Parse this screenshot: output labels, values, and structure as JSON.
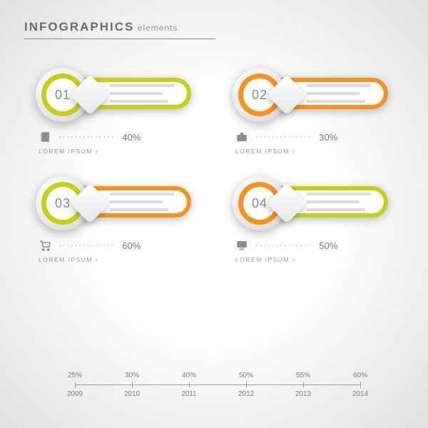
{
  "header": {
    "title_main": "INFOGRAPHICS",
    "title_sub": "elements",
    "rule_color": "#8a8a8a"
  },
  "colors": {
    "lime": "#c3d11a",
    "orange": "#f7921e",
    "ring_grad": "#e8e8e8"
  },
  "items": [
    {
      "num": "01",
      "ring_color": "#c3d11a",
      "bar_color": "#c3d11a",
      "icon": "notebook",
      "pct": "40%",
      "caption": "LOREM IPSUM"
    },
    {
      "num": "02",
      "ring_color": "#f7921e",
      "bar_color": "#f7921e",
      "icon": "briefcase",
      "pct": "30%",
      "caption": "LOREM IPSUM"
    },
    {
      "num": "03",
      "ring_color": "#c3d11a",
      "bar_color": "#f7921e",
      "icon": "cart",
      "pct": "60%",
      "caption": "LOREM IPSUM"
    },
    {
      "num": "04",
      "ring_color": "#f7921e",
      "bar_color": "#c3d11a",
      "icon": "monitor",
      "pct": "50%",
      "caption": "LOREM IPSUM"
    }
  ],
  "timeline": {
    "ticks": [
      {
        "pos": 0.0,
        "above": "25%",
        "below": "2009"
      },
      {
        "pos": 0.2,
        "above": "30%",
        "below": "2010"
      },
      {
        "pos": 0.4,
        "above": "40%",
        "below": "2011"
      },
      {
        "pos": 0.6,
        "above": "50%",
        "below": "2012"
      },
      {
        "pos": 0.8,
        "above": "55%",
        "below": "2013"
      },
      {
        "pos": 1.0,
        "above": "60%",
        "below": "2014"
      }
    ],
    "axis_color": "#9c9c9c",
    "label_color": "#808080"
  }
}
